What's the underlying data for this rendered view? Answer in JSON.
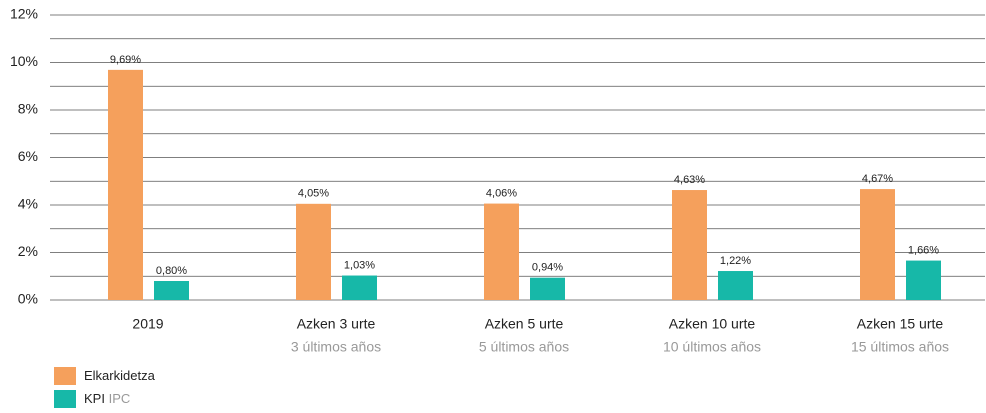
{
  "chart_data": {
    "type": "bar",
    "categories": [
      "2019",
      "Azken 3 urte",
      "Azken 5 urte",
      "Azken 10 urte",
      "Azken 15 urte"
    ],
    "category_subtitles": [
      null,
      "3 últimos años",
      "5 últimos años",
      "10 últimos años",
      "15 últimos años"
    ],
    "series": [
      {
        "name": "Elkarkidetza",
        "color": "#f5a05c",
        "values": [
          9.69,
          4.05,
          4.06,
          4.63,
          4.67
        ],
        "value_labels": [
          "9,69%",
          "4,05%",
          "4,06%",
          "4,63%",
          "4,67%"
        ]
      },
      {
        "name": "KPI",
        "name_translation": "IPC",
        "color": "#17b8a8",
        "values": [
          0.8,
          1.03,
          0.94,
          1.22,
          1.66
        ],
        "value_labels": [
          "0,80%",
          "1,03%",
          "0,94%",
          "1,22%",
          "1,66%"
        ]
      }
    ],
    "ylim": [
      0,
      12
    ],
    "yticks": [
      {
        "value": 0,
        "label": "0%"
      },
      {
        "value": 2,
        "label": "2%"
      },
      {
        "value": 4,
        "label": "4%"
      },
      {
        "value": 6,
        "label": "6%"
      },
      {
        "value": 8,
        "label": "8%"
      },
      {
        "value": 10,
        "label": "10%"
      },
      {
        "value": 12,
        "label": "12%"
      }
    ],
    "minor_yticks": [
      1,
      3,
      5,
      7,
      9,
      11
    ],
    "grid": true
  }
}
